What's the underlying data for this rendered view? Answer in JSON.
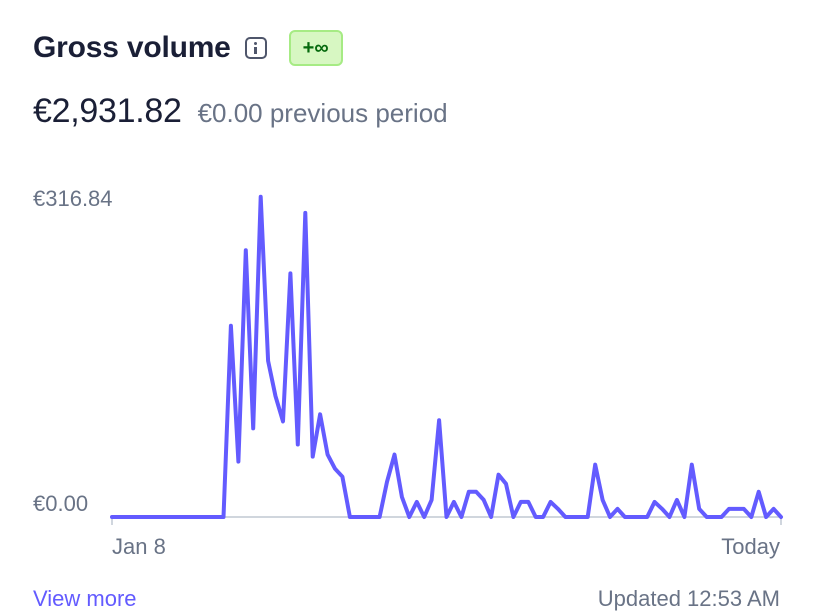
{
  "header": {
    "title": "Gross volume",
    "badge": "+∞"
  },
  "summary": {
    "amount": "€2,931.82",
    "previous": "€0.00 previous period"
  },
  "chart_data": {
    "type": "line",
    "y_max_label": "€316.84",
    "y_min_label": "€0.00",
    "x_start_label": "Jan 8",
    "x_end_label": "Today",
    "ylim": [
      0,
      316.84
    ],
    "series": [
      {
        "color": "#635bff",
        "values": [
          0,
          0,
          0,
          0,
          0,
          0,
          0,
          0,
          0,
          0,
          0,
          0,
          0,
          0,
          0,
          0,
          190,
          55,
          265,
          88,
          318,
          155,
          120,
          95,
          242,
          72,
          302,
          60,
          102,
          62,
          48,
          40,
          0,
          0,
          0,
          0,
          0,
          35,
          62,
          20,
          0,
          15,
          0,
          17,
          96,
          0,
          15,
          0,
          25,
          25,
          17,
          0,
          42,
          33,
          0,
          15,
          15,
          0,
          0,
          15,
          8,
          0,
          0,
          0,
          0,
          52,
          17,
          0,
          8,
          0,
          0,
          0,
          0,
          15,
          8,
          0,
          17,
          0,
          52,
          8,
          0,
          0,
          0,
          8,
          8,
          8,
          0,
          25,
          0,
          8,
          0
        ]
      }
    ]
  },
  "footer": {
    "view_more": "View more",
    "updated": "Updated 12:53 AM"
  },
  "colors": {
    "line": "#635bff",
    "badge_bg": "#d7f7c2",
    "badge_text": "#05690d"
  }
}
